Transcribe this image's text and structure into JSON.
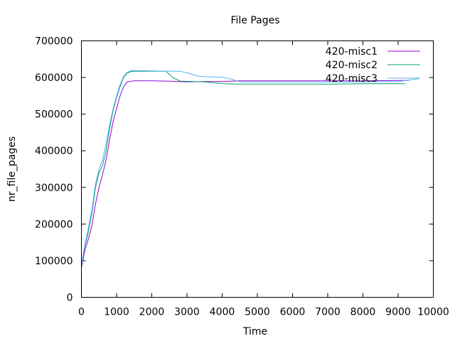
{
  "chart_data": {
    "type": "line",
    "title": "File Pages",
    "xlabel": "Time",
    "ylabel": "nr_file_pages",
    "xlim": [
      0,
      10000
    ],
    "ylim": [
      0,
      700000
    ],
    "xticks": [
      0,
      1000,
      2000,
      3000,
      4000,
      5000,
      6000,
      7000,
      8000,
      9000,
      10000
    ],
    "yticks": [
      0,
      100000,
      200000,
      300000,
      400000,
      500000,
      600000,
      700000
    ],
    "grid": false,
    "legend_position": "top-right",
    "series": [
      {
        "name": "420-misc1",
        "color": "#9400d3",
        "x": [
          0,
          100,
          200,
          300,
          400,
          500,
          600,
          700,
          800,
          900,
          1000,
          1100,
          1200,
          1300,
          1500,
          2000,
          2500,
          3000,
          3500,
          4000,
          4500,
          5000,
          6000,
          7000,
          8000,
          9000,
          9300
        ],
        "y": [
          80000,
          130000,
          160000,
          195000,
          255000,
          300000,
          335000,
          375000,
          430000,
          480000,
          515000,
          550000,
          575000,
          588000,
          591000,
          591000,
          590000,
          588000,
          589000,
          589000,
          591000,
          591000,
          591000,
          591000,
          591000,
          592000,
          592000
        ]
      },
      {
        "name": "420-misc2",
        "color": "#009e73",
        "x": [
          0,
          100,
          200,
          300,
          400,
          500,
          600,
          700,
          800,
          900,
          1000,
          1100,
          1200,
          1300,
          1400,
          1500,
          2000,
          2400,
          2600,
          2800,
          3500,
          4000,
          4500,
          5000,
          6000,
          7000,
          8000,
          9000,
          9200
        ],
        "y": [
          85000,
          140000,
          180000,
          230000,
          300000,
          340000,
          360000,
          400000,
          460000,
          510000,
          545000,
          575000,
          600000,
          612000,
          616000,
          617000,
          617000,
          617000,
          600000,
          590000,
          588000,
          583000,
          582000,
          582000,
          582000,
          582000,
          583000,
          583000,
          583000
        ]
      },
      {
        "name": "420-misc3",
        "color": "#56b4e9",
        "x": [
          0,
          100,
          200,
          300,
          400,
          500,
          600,
          700,
          800,
          900,
          1000,
          1100,
          1200,
          1300,
          1400,
          1500,
          2000,
          2500,
          2800,
          3000,
          3300,
          3500,
          4000,
          4300,
          4500,
          5000,
          6000,
          7000,
          8000,
          9000,
          9600
        ],
        "y": [
          90000,
          145000,
          190000,
          240000,
          310000,
          350000,
          375000,
          420000,
          470000,
          515000,
          550000,
          580000,
          603000,
          614000,
          618000,
          619000,
          618000,
          617000,
          617000,
          613000,
          604000,
          602000,
          601000,
          595000,
          588000,
          588000,
          588000,
          588000,
          588000,
          589000,
          597000
        ]
      }
    ]
  }
}
